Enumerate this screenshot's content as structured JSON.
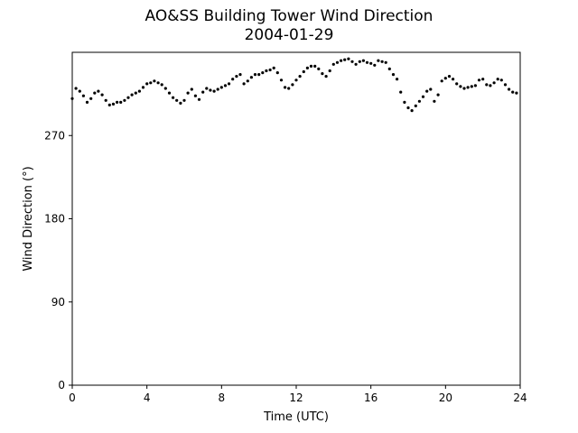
{
  "chart_data": {
    "type": "scatter",
    "title": "AO&SS Building Tower Wind Direction",
    "subtitle": "2004-01-29",
    "xlabel": "Time (UTC)",
    "ylabel": "Wind Direction (°)",
    "xlim": [
      0,
      24
    ],
    "ylim": [
      0,
      360
    ],
    "xticks": [
      0,
      4,
      8,
      12,
      16,
      20,
      24
    ],
    "xtick_labels": [
      "0",
      "4",
      "8",
      "12",
      "16",
      "20",
      "24"
    ],
    "yticks": [
      0,
      90,
      180,
      270
    ],
    "ytick_labels": [
      "0",
      "90",
      "180",
      "270"
    ],
    "grid": false,
    "marker_color": "#000000",
    "series": [
      {
        "x": [
          0.0,
          0.2,
          0.4,
          0.6,
          0.8,
          1.0,
          1.2,
          1.4,
          1.6,
          1.8,
          2.0,
          2.2,
          2.4,
          2.6,
          2.8,
          3.0,
          3.2,
          3.4,
          3.6,
          3.8,
          4.0,
          4.2,
          4.4,
          4.6,
          4.8,
          5.0,
          5.2,
          5.4,
          5.6,
          5.8,
          6.0,
          6.2,
          6.4,
          6.6,
          6.8,
          7.0,
          7.2,
          7.4,
          7.6,
          7.8,
          8.0,
          8.2,
          8.4,
          8.6,
          8.8,
          9.0,
          9.2,
          9.4,
          9.6,
          9.8,
          10.0,
          10.2,
          10.4,
          10.6,
          10.8,
          11.0,
          11.2,
          11.4,
          11.6,
          11.8,
          12.0,
          12.2,
          12.4,
          12.6,
          12.8,
          13.0,
          13.2,
          13.4,
          13.6,
          13.8,
          14.0,
          14.2,
          14.4,
          14.6,
          14.8,
          15.0,
          15.2,
          15.4,
          15.6,
          15.8,
          16.0,
          16.2,
          16.4,
          16.6,
          16.8,
          17.0,
          17.2,
          17.4,
          17.6,
          17.8,
          18.0,
          18.2,
          18.4,
          18.6,
          18.8,
          19.0,
          19.2,
          19.4,
          19.6,
          19.8,
          20.0,
          20.2,
          20.4,
          20.6,
          20.8,
          21.0,
          21.2,
          21.4,
          21.6,
          21.8,
          22.0,
          22.2,
          22.4,
          22.6,
          22.8,
          23.0,
          23.2,
          23.4,
          23.6,
          23.8
        ],
        "y": [
          310,
          321,
          318,
          313,
          306,
          310,
          316,
          318,
          314,
          308,
          303,
          304,
          306,
          306,
          308,
          311,
          314,
          316,
          318,
          322,
          326,
          327,
          329,
          327,
          325,
          321,
          316,
          311,
          308,
          305,
          308,
          316,
          320,
          313,
          309,
          317,
          321,
          319,
          318,
          320,
          322,
          324,
          326,
          331,
          334,
          336,
          326,
          329,
          333,
          336,
          336,
          338,
          340,
          341,
          343,
          338,
          330,
          322,
          321,
          325,
          330,
          334,
          339,
          343,
          345,
          345,
          342,
          337,
          334,
          340,
          347,
          349,
          351,
          352,
          353,
          350,
          347,
          350,
          351,
          349,
          348,
          346,
          351,
          350,
          349,
          342,
          336,
          331,
          317,
          306,
          300,
          297,
          302,
          307,
          312,
          318,
          320,
          307,
          314,
          329,
          332,
          334,
          331,
          326,
          323,
          321,
          322,
          323,
          324,
          330,
          331,
          325,
          324,
          327,
          331,
          330,
          325,
          320,
          317,
          316
        ]
      }
    ]
  }
}
